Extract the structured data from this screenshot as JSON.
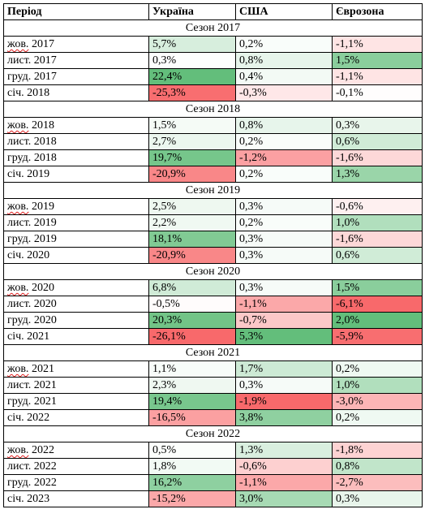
{
  "table": {
    "headers": [
      "Період",
      "Україна",
      "США",
      "Єврозона"
    ],
    "seasons": [
      {
        "label": "Сезон 2017",
        "rows": [
          {
            "month": "жов.",
            "year": "2017",
            "spell": true,
            "ua": "5,7%",
            "us": "0,2%",
            "ez": "-1,1%"
          },
          {
            "month": "лист.",
            "year": "2017",
            "spell": false,
            "ua": "0,3%",
            "us": "0,8%",
            "ez": "1,5%"
          },
          {
            "month": "груд.",
            "year": "2017",
            "spell": false,
            "ua": "22,4%",
            "us": "0,4%",
            "ez": "-1,1%"
          },
          {
            "month": "січ.",
            "year": "2018",
            "spell": false,
            "ua": "-25,3%",
            "us": "-0,3%",
            "ez": "-0,1%"
          }
        ]
      },
      {
        "label": "Сезон 2018",
        "rows": [
          {
            "month": "жов.",
            "year": "2018",
            "spell": true,
            "ua": "1,5%",
            "us": "0,8%",
            "ez": "0,3%"
          },
          {
            "month": "лист.",
            "year": "2018",
            "spell": false,
            "ua": "2,7%",
            "us": "0,2%",
            "ez": "0,6%"
          },
          {
            "month": "груд.",
            "year": "2018",
            "spell": false,
            "ua": "19,7%",
            "us": "-1,2%",
            "ez": "-1,6%"
          },
          {
            "month": "січ.",
            "year": "2019",
            "spell": false,
            "ua": "-20,9%",
            "us": "0,2%",
            "ez": "1,3%"
          }
        ]
      },
      {
        "label": "Сезон 2019",
        "rows": [
          {
            "month": "жов.",
            "year": "2019",
            "spell": true,
            "ua": "2,5%",
            "us": "0,3%",
            "ez": "-0,6%"
          },
          {
            "month": "лист.",
            "year": "2019",
            "spell": false,
            "ua": "2,2%",
            "us": "0,2%",
            "ez": "1,0%"
          },
          {
            "month": "груд.",
            "year": "2019",
            "spell": false,
            "ua": "18,1%",
            "us": "0,3%",
            "ez": "-1,6%"
          },
          {
            "month": "січ.",
            "year": "2020",
            "spell": false,
            "ua": "-20,9%",
            "us": "0,3%",
            "ez": "0,6%"
          }
        ]
      },
      {
        "label": "Сезон 2020",
        "rows": [
          {
            "month": "жов.",
            "year": "2020",
            "spell": true,
            "ua": "6,8%",
            "us": "0,3%",
            "ez": "1,5%"
          },
          {
            "month": "лист.",
            "year": "2020",
            "spell": false,
            "ua": "-0,5%",
            "us": "-1,1%",
            "ez": "-6,1%"
          },
          {
            "month": "груд.",
            "year": "2020",
            "spell": false,
            "ua": "20,3%",
            "us": "-0,7%",
            "ez": "2,0%"
          },
          {
            "month": "січ.",
            "year": "2021",
            "spell": false,
            "ua": "-26,1%",
            "us": "5,3%",
            "ez": "-5,9%"
          }
        ]
      },
      {
        "label": "Сезон 2021",
        "rows": [
          {
            "month": "жов.",
            "year": "2021",
            "spell": true,
            "ua": "1,1%",
            "us": "1,7%",
            "ez": "0,2%"
          },
          {
            "month": "лист.",
            "year": "2021",
            "spell": false,
            "ua": "2,3%",
            "us": "0,3%",
            "ez": "1,0%"
          },
          {
            "month": "груд.",
            "year": "2021",
            "spell": false,
            "ua": "19,4%",
            "us": "-1,9%",
            "ez": "-3,0%"
          },
          {
            "month": "січ.",
            "year": "2022",
            "spell": false,
            "ua": "-16,5%",
            "us": "3,8%",
            "ez": "0,2%"
          }
        ]
      },
      {
        "label": "Сезон 2022",
        "rows": [
          {
            "month": "жов.",
            "year": "2022",
            "spell": true,
            "ua": "0,5%",
            "us": "1,3%",
            "ez": "-1,8%"
          },
          {
            "month": "лист.",
            "year": "2022",
            "spell": false,
            "ua": "1,8%",
            "us": "-0,6%",
            "ez": "0,8%"
          },
          {
            "month": "груд.",
            "year": "2022",
            "spell": false,
            "ua": "16,2%",
            "us": "-1,1%",
            "ez": "-2,7%"
          },
          {
            "month": "січ.",
            "year": "2023",
            "spell": false,
            "ua": "-15,2%",
            "us": "3,0%",
            "ez": "0,3%"
          }
        ]
      }
    ]
  },
  "colors": {
    "positive": "#63be7b",
    "negative": "#f8696b",
    "neutral": "#ffffff",
    "border": "#000000",
    "spellcheck": "#e02020"
  }
}
